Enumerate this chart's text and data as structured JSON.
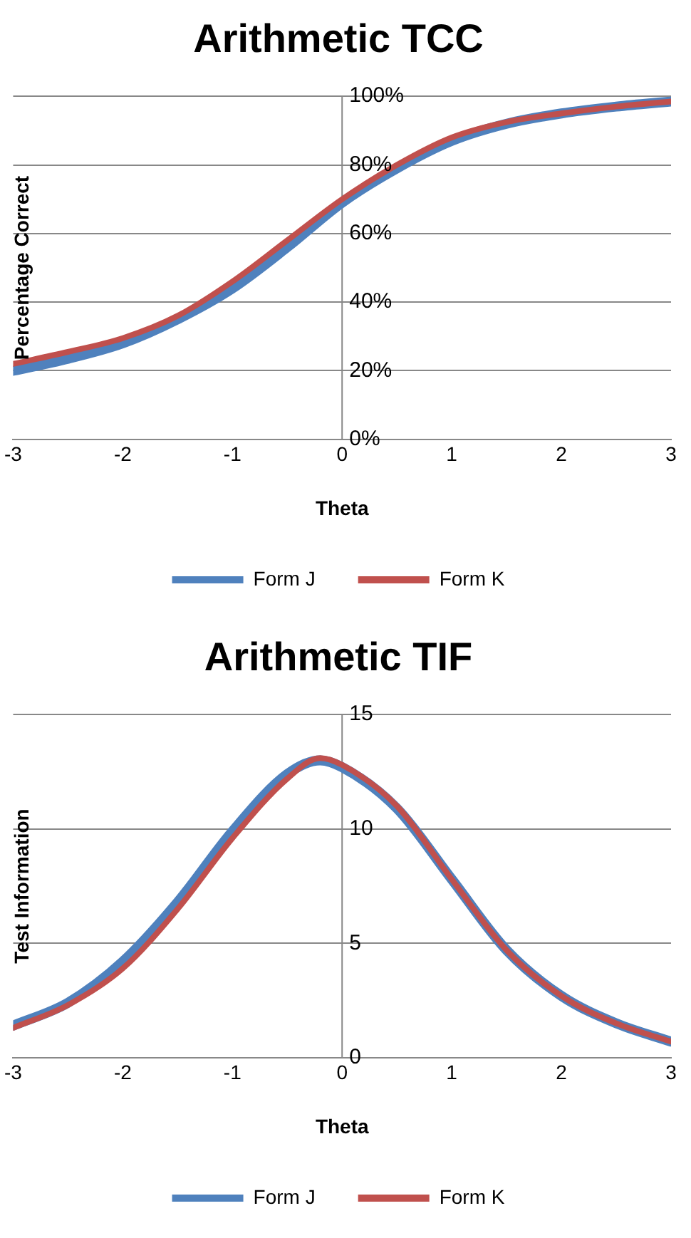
{
  "chart_data": [
    {
      "type": "line",
      "title": "Arithmetic TCC",
      "xlabel": "Theta",
      "ylabel": "Percentage Correct",
      "x": [
        -3,
        -2.5,
        -2,
        -1.5,
        -1,
        -0.5,
        0,
        0.5,
        1,
        1.5,
        2,
        2.5,
        3
      ],
      "xlim": [
        -3,
        3
      ],
      "xticks": [
        -3,
        -2,
        -1,
        0,
        1,
        2,
        3
      ],
      "ylim": [
        0,
        100
      ],
      "yticks": [
        {
          "value": 0,
          "label": "0%"
        },
        {
          "value": 20,
          "label": "20%"
        },
        {
          "value": 40,
          "label": "40%"
        },
        {
          "value": 60,
          "label": "60%"
        },
        {
          "value": 80,
          "label": "80%"
        },
        {
          "value": 100,
          "label": "100%"
        }
      ],
      "grid": "y",
      "legend": "bottom",
      "marker": "none",
      "line_style": "solid",
      "series": [
        {
          "name": "Form J",
          "color": "#4f81bd",
          "values": [
            20,
            23.5,
            28,
            35,
            44,
            56,
            69,
            79,
            87,
            92,
            95,
            97,
            98.5
          ]
        },
        {
          "name": "Form K",
          "color": "#c0504d",
          "values": [
            22,
            25.5,
            29.5,
            36,
            46,
            58,
            70,
            80,
            88,
            92.5,
            95,
            97,
            98.5
          ]
        }
      ]
    },
    {
      "type": "line",
      "title": "Arithmetic TIF",
      "xlabel": "Theta",
      "ylabel": "Test Information",
      "x": [
        -3,
        -2.5,
        -2,
        -1.5,
        -1,
        -0.5,
        -0.2,
        0,
        0.5,
        1,
        1.5,
        2,
        2.5,
        3
      ],
      "xlim": [
        -3,
        3
      ],
      "xticks": [
        -3,
        -2,
        -1,
        0,
        1,
        2,
        3
      ],
      "ylim": [
        0,
        15
      ],
      "yticks": [
        0,
        5,
        10,
        15
      ],
      "grid": "y",
      "legend": "bottom",
      "marker": "none",
      "line_style": "solid",
      "series": [
        {
          "name": "Form J",
          "color": "#4f81bd",
          "values": [
            1.4,
            2.4,
            4.2,
            6.8,
            9.9,
            12.4,
            13,
            12.7,
            10.9,
            7.8,
            4.7,
            2.7,
            1.5,
            0.7
          ]
        },
        {
          "name": "Form K",
          "color": "#c0504d",
          "values": [
            1.3,
            2.3,
            3.9,
            6.5,
            9.6,
            12.2,
            13.1,
            12.8,
            11,
            7.8,
            4.7,
            2.7,
            1.5,
            0.7
          ]
        }
      ]
    }
  ]
}
